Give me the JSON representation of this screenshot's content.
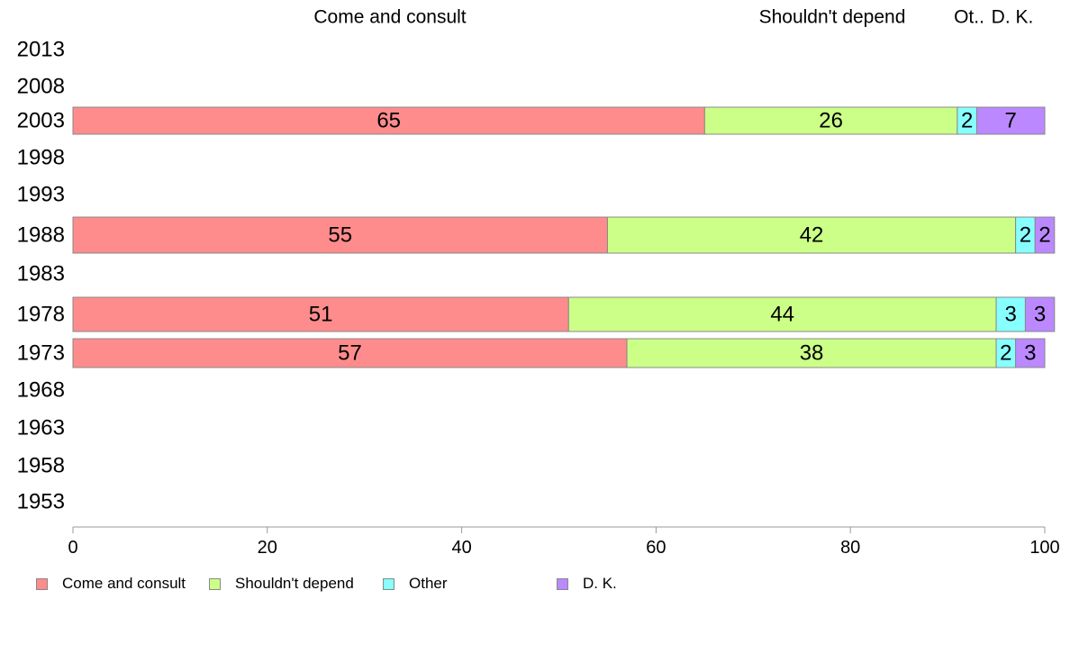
{
  "chart_data": {
    "type": "bar",
    "orientation": "horizontal",
    "stacked": true,
    "categories": [
      "2013",
      "2008",
      "2003",
      "1998",
      "1993",
      "1988",
      "1983",
      "1978",
      "1973",
      "1968",
      "1963",
      "1958",
      "1953"
    ],
    "series": [
      {
        "name": "Come and consult",
        "color": "#FF8C8C",
        "values": [
          null,
          null,
          65,
          null,
          null,
          55,
          null,
          51,
          57,
          null,
          null,
          null,
          null
        ],
        "labels": [
          "",
          "",
          "65",
          "",
          "",
          "55",
          "",
          "51",
          "57",
          "",
          "",
          "",
          ""
        ]
      },
      {
        "name": "Shouldn't depend",
        "color": "#CCFF88",
        "values": [
          null,
          null,
          26,
          null,
          null,
          42,
          null,
          44,
          38,
          null,
          null,
          null,
          null
        ],
        "labels": [
          "",
          "",
          "26",
          "",
          "",
          "42",
          "",
          "44",
          "38",
          "",
          "",
          "",
          ""
        ]
      },
      {
        "name": "Other",
        "color": "#88FFFF",
        "values": [
          null,
          null,
          2,
          null,
          null,
          2,
          null,
          3,
          2,
          null,
          null,
          null,
          null
        ],
        "labels": [
          "",
          "",
          "2",
          "",
          "",
          "2",
          "",
          "3",
          "2",
          "",
          "",
          "",
          ""
        ]
      },
      {
        "name": "D. K.",
        "color": "#BB88FF",
        "values": [
          null,
          null,
          7,
          null,
          null,
          2,
          null,
          3,
          3,
          null,
          null,
          null,
          null
        ],
        "labels": [
          "",
          "",
          "7",
          "",
          "",
          "2",
          "",
          "3",
          "3",
          "",
          "",
          "",
          ""
        ]
      }
    ],
    "top_labels": [
      "Come and consult",
      "Shouldn't depend",
      "Ot..",
      "D. K."
    ],
    "xlim": [
      0,
      100
    ],
    "xticks": [
      0,
      20,
      40,
      60,
      80,
      100
    ],
    "grid": false,
    "legend_position": "bottom-left"
  },
  "legend": {
    "items": [
      {
        "label": "Come and consult",
        "color": "#FF8C8C"
      },
      {
        "label": "Shouldn't depend",
        "color": "#CCFF88"
      },
      {
        "label": "Other",
        "color": "#88FFFF"
      },
      {
        "label": "D. K.",
        "color": "#BB88FF"
      }
    ]
  }
}
